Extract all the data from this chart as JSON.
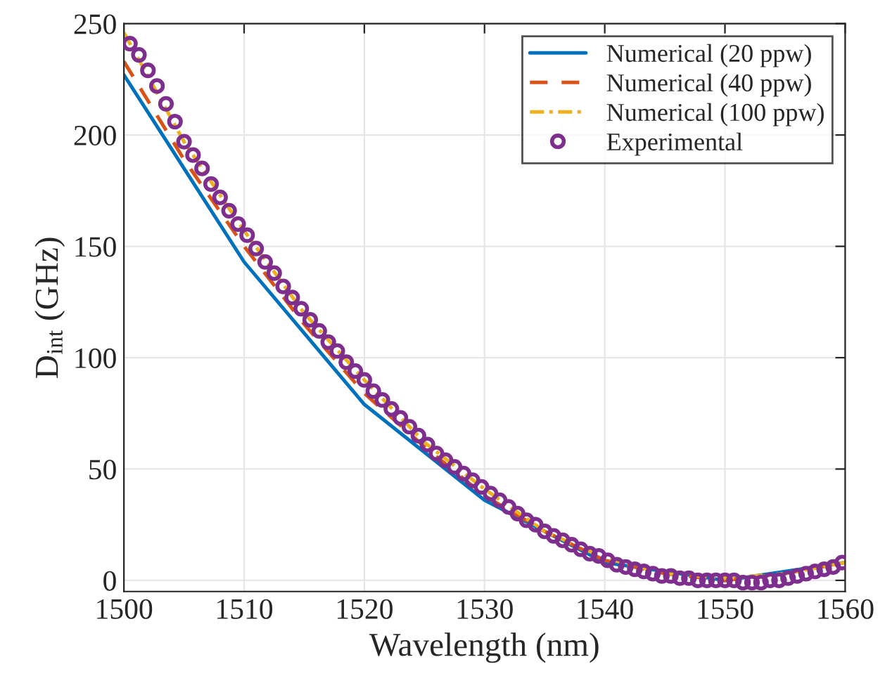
{
  "chart_data": {
    "type": "line",
    "xlabel": "Wavelength (nm)",
    "ylabel": "D$_{int}$ (GHz)",
    "xlim": [
      1500,
      1560
    ],
    "xticks": [
      1500,
      1510,
      1520,
      1530,
      1540,
      1550,
      1560
    ],
    "ylim": [
      -5,
      250
    ],
    "yticks": [
      0,
      50,
      100,
      150,
      200,
      250
    ],
    "grid": true,
    "legend": "top right",
    "series": [
      {
        "name": "Numerical (20 ppw)",
        "line_style": "solid",
        "color": "#0072bd",
        "x": [
          1500,
          1510,
          1520,
          1530,
          1540,
          1550,
          1560
        ],
        "values": [
          227,
          143,
          79,
          36,
          8,
          0,
          8
        ]
      },
      {
        "name": "Numerical (40 ppw)",
        "line_style": "dashed",
        "color": "#d95319",
        "x": [
          1500,
          1505,
          1510,
          1515,
          1520,
          1525,
          1530,
          1535,
          1540,
          1545,
          1550,
          1555,
          1560
        ],
        "values": [
          233,
          189,
          150,
          115,
          84,
          60,
          38,
          22,
          9,
          3,
          0,
          3,
          8
        ]
      },
      {
        "name": "Numerical (100 ppw)",
        "line_style": "dashdot",
        "color": "#edb120",
        "x": [
          1500,
          1505,
          1510,
          1515,
          1520,
          1525,
          1530,
          1535,
          1540,
          1545,
          1550,
          1555,
          1560
        ],
        "values": [
          246,
          197,
          157,
          120,
          90,
          62,
          41,
          22,
          10,
          3,
          1,
          3,
          8
        ]
      },
      {
        "name": "Experimental",
        "type": "scatter",
        "marker": "circle",
        "color": "#7e2f8e",
        "x": [
          1500.5,
          1501.25,
          1502.0,
          1502.75,
          1503.5,
          1504.25,
          1505.0,
          1505.75,
          1506.5,
          1507.25,
          1508.0,
          1508.75,
          1509.5,
          1510.25,
          1511.0,
          1511.75,
          1512.5,
          1513.25,
          1514.0,
          1514.75,
          1515.5,
          1516.25,
          1517.0,
          1517.75,
          1518.5,
          1519.25,
          1520.0,
          1520.75,
          1521.5,
          1522.25,
          1523.0,
          1523.75,
          1524.5,
          1525.25,
          1526.0,
          1526.75,
          1527.5,
          1528.25,
          1529.0,
          1529.75,
          1530.5,
          1531.25,
          1532.0,
          1532.75,
          1533.5,
          1534.25,
          1535.0,
          1535.75,
          1536.5,
          1537.25,
          1538.0,
          1538.75,
          1539.5,
          1540.25,
          1541.0,
          1541.75,
          1542.5,
          1543.25,
          1544.0,
          1544.75,
          1545.5,
          1546.25,
          1547.0,
          1547.75,
          1548.5,
          1549.25,
          1550.0,
          1550.75,
          1551.5,
          1552.25,
          1553.0,
          1553.75,
          1554.5,
          1555.25,
          1556.0,
          1556.75,
          1557.5,
          1558.25,
          1559.0,
          1559.75
        ],
        "values": [
          241,
          236,
          229,
          222,
          214,
          206,
          197,
          191,
          185,
          178,
          172,
          166,
          160,
          155,
          149,
          143,
          138,
          132,
          127,
          122,
          117,
          112,
          107,
          103,
          98,
          94,
          90,
          85,
          81,
          77,
          73,
          69,
          65,
          61,
          57,
          54,
          51,
          48,
          45,
          42,
          39,
          36,
          33,
          30,
          27,
          25,
          22,
          20,
          18,
          16,
          14,
          12,
          11,
          9,
          7,
          6,
          5,
          4,
          3,
          2,
          2,
          1,
          1,
          0,
          0,
          0,
          0,
          0,
          -1,
          -1,
          -1,
          0,
          0,
          1,
          2,
          3,
          4,
          5,
          6,
          8
        ]
      }
    ]
  }
}
